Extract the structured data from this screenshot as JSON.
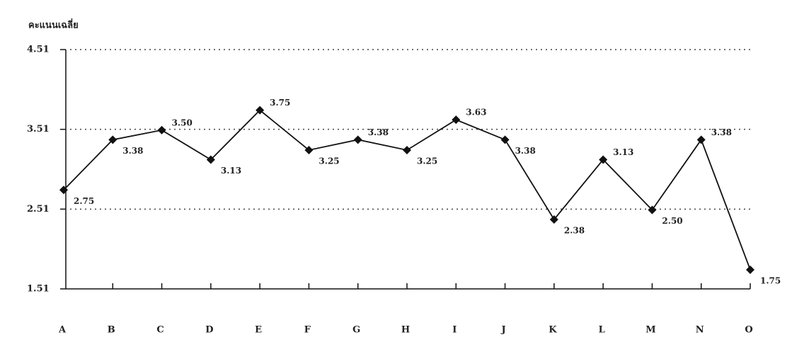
{
  "chart_data": {
    "type": "line",
    "y_label": "คะแนนเฉลี่ย",
    "categories": [
      "A",
      "B",
      "C",
      "D",
      "E",
      "F",
      "G",
      "H",
      "I",
      "J",
      "K",
      "L",
      "M",
      "N",
      "O"
    ],
    "values": [
      2.75,
      3.38,
      3.5,
      3.13,
      3.75,
      3.25,
      3.38,
      3.25,
      3.63,
      3.38,
      2.38,
      3.13,
      2.5,
      3.38,
      1.75
    ],
    "value_labels": [
      "2.75",
      "3.38",
      "3.50",
      "3.13",
      "3.75",
      "3.25",
      "3.38",
      "3.25",
      "3.63",
      "3.38",
      "2.38",
      "3.13",
      "2.50",
      "3.38",
      "1.75"
    ],
    "color": "#111111",
    "ylim": [
      1.51,
      4.51
    ],
    "yticks": [
      1.51,
      2.51,
      3.51,
      4.51
    ],
    "grid": true
  }
}
